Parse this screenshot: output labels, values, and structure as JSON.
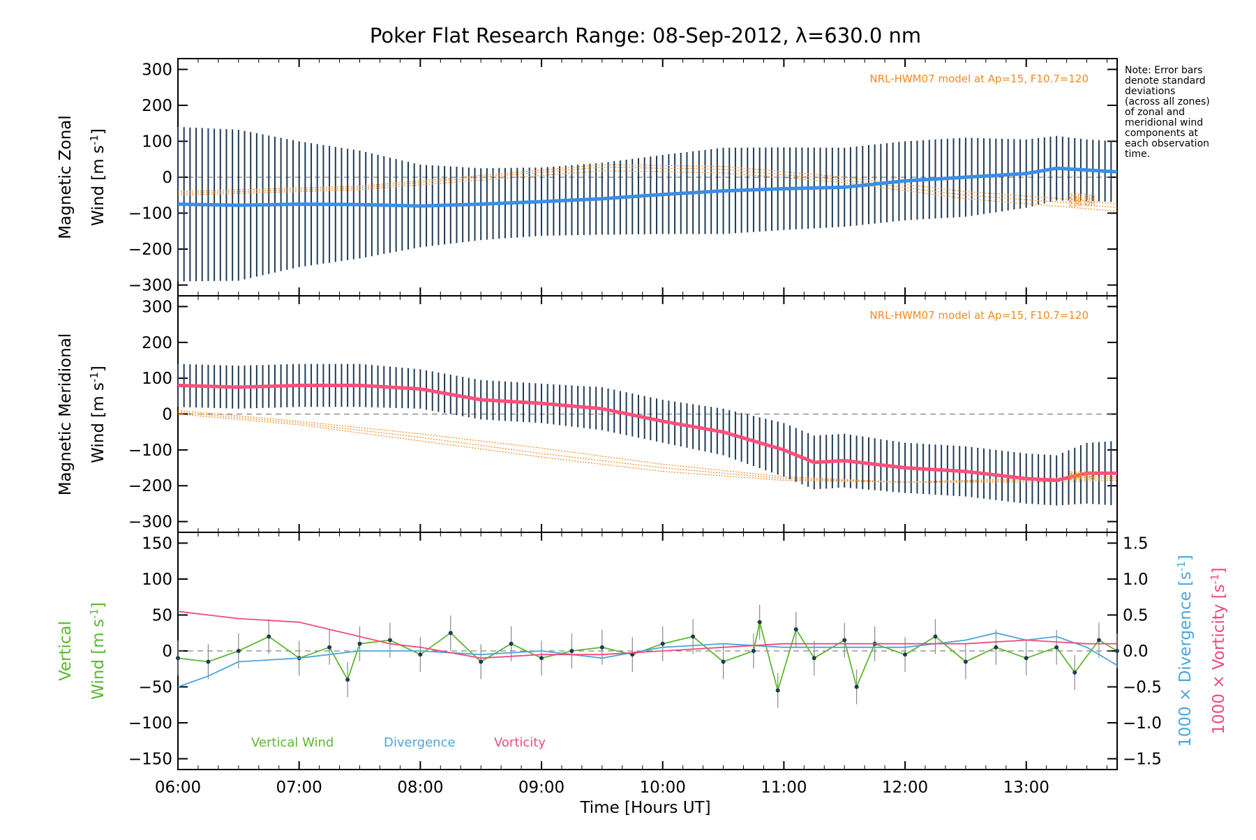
{
  "chart_data": [
    {
      "type": "line",
      "title": "Poker Flat Research Range: 08-Sep-2012, λ=630.0 nm",
      "ylabel_line1": "Magnetic Zonal",
      "ylabel_line2": "Wind [m s",
      "ylabel_sup": "-1",
      "ylabel_close": "]",
      "ylim": [
        -330,
        330
      ],
      "yticks": [
        "300",
        "200",
        "100",
        "0",
        "−100",
        "−200",
        "−300"
      ],
      "ytick_values": [
        300,
        200,
        100,
        0,
        -100,
        -200,
        -300
      ],
      "model_note": "NRL-HWM07 model at Ap=15, F10.7=120",
      "model_altitudes": [
        "260 km",
        "240 km",
        "220 km"
      ],
      "side_note": [
        "Note: Error bars",
        "denote standard",
        "deviations",
        "(across all zones)",
        "of zonal and",
        "meridional wind",
        "components at",
        "each observation",
        "time."
      ],
      "mean_series": {
        "name": "Zonal wind",
        "color": "#3a8ee6",
        "x_hours": [
          6.0,
          6.5,
          7.0,
          7.5,
          8.0,
          8.5,
          9.0,
          9.5,
          10.0,
          10.5,
          11.0,
          11.5,
          12.0,
          12.5,
          13.0,
          13.25,
          13.5,
          13.75
        ],
        "y": [
          -75,
          -78,
          -75,
          -76,
          -80,
          -75,
          -68,
          -60,
          -48,
          -38,
          -32,
          -28,
          -10,
          0,
          10,
          25,
          20,
          15
        ]
      },
      "errbar_halfwidth": [
        215,
        210,
        175,
        150,
        115,
        100,
        95,
        100,
        110,
        120,
        115,
        110,
        110,
        110,
        95,
        90,
        85,
        85
      ],
      "model_curves": [
        {
          "label": "260 km",
          "x_hours": [
            6.0,
            7.5,
            8.5,
            9.5,
            10.5,
            11.5,
            12.5,
            13.3,
            13.75
          ],
          "y": [
            -40,
            -25,
            5,
            35,
            30,
            0,
            -40,
            -60,
            -75
          ]
        },
        {
          "label": "240 km",
          "x_hours": [
            6.0,
            7.5,
            8.5,
            9.5,
            10.5,
            11.5,
            12.5,
            13.3,
            13.75
          ],
          "y": [
            -45,
            -30,
            0,
            28,
            22,
            -8,
            -50,
            -70,
            -85
          ]
        },
        {
          "label": "220 km",
          "x_hours": [
            6.0,
            7.5,
            8.5,
            9.5,
            10.5,
            11.5,
            12.5,
            13.3,
            13.75
          ],
          "y": [
            -50,
            -35,
            -8,
            18,
            12,
            -15,
            -60,
            -82,
            -95
          ]
        }
      ]
    },
    {
      "type": "line",
      "ylabel_line1": "Magnetic Meridional",
      "ylabel_line2": "Wind [m s",
      "ylabel_sup": "-1",
      "ylabel_close": "]",
      "ylim": [
        -330,
        330
      ],
      "yticks": [
        "300",
        "200",
        "100",
        "0",
        "−100",
        "−200",
        "−300"
      ],
      "ytick_values": [
        300,
        200,
        100,
        0,
        -100,
        -200,
        -300
      ],
      "model_note": "NRL-HWM07 model at Ap=15, F10.7=120",
      "model_altitudes": [
        "260 km",
        "240 km",
        "220 km"
      ],
      "mean_series": {
        "name": "Meridional wind",
        "color": "#ff4f7b",
        "x_hours": [
          6.0,
          6.5,
          7.0,
          7.5,
          8.0,
          8.5,
          9.0,
          9.5,
          10.0,
          10.5,
          11.0,
          11.25,
          11.5,
          12.0,
          12.5,
          13.0,
          13.25,
          13.5,
          13.75
        ],
        "y": [
          80,
          75,
          80,
          80,
          70,
          40,
          30,
          15,
          -20,
          -50,
          -100,
          -135,
          -130,
          -150,
          -160,
          -180,
          -185,
          -165,
          -165
        ]
      },
      "errbar_halfwidth": [
        60,
        60,
        60,
        60,
        55,
        55,
        55,
        60,
        60,
        65,
        75,
        75,
        75,
        70,
        70,
        70,
        70,
        85,
        90
      ],
      "model_curves": [
        {
          "label": "260 km",
          "x_hours": [
            6.0,
            7.0,
            8.0,
            9.0,
            10.0,
            11.0,
            12.0,
            13.0,
            13.75
          ],
          "y": [
            10,
            -20,
            -55,
            -95,
            -140,
            -175,
            -190,
            -190,
            -185
          ]
        },
        {
          "label": "240 km",
          "x_hours": [
            6.0,
            7.0,
            8.0,
            9.0,
            10.0,
            11.0,
            12.0,
            13.0,
            13.75
          ],
          "y": [
            5,
            -25,
            -65,
            -110,
            -150,
            -180,
            -190,
            -185,
            -180
          ]
        },
        {
          "label": "220 km",
          "x_hours": [
            6.0,
            7.0,
            8.0,
            9.0,
            10.0,
            11.0,
            12.0,
            13.0,
            13.75
          ],
          "y": [
            0,
            -30,
            -75,
            -120,
            -160,
            -185,
            -190,
            -180,
            -175
          ]
        }
      ]
    },
    {
      "type": "line",
      "ylabel_left_line1": "Vertical",
      "ylabel_left_line2": "Wind [m s",
      "ylabel_sup": "-1",
      "ylabel_close": "]",
      "ylabel_right1": "1000 × Divergence [s",
      "ylabel_right2": "1000 × Vorticity [s",
      "ylim": [
        -165,
        165
      ],
      "yticks": [
        "150",
        "100",
        "50",
        "0",
        "−50",
        "−100",
        "−150"
      ],
      "ytick_values": [
        150,
        100,
        50,
        0,
        -50,
        -100,
        -150
      ],
      "y2lim": [
        -1.65,
        1.65
      ],
      "y2ticks": [
        "1.5",
        "1.0",
        "0.5",
        "0.0",
        "−0.5",
        "−1.0",
        "−1.5"
      ],
      "y2tick_values": [
        1.5,
        1.0,
        0.5,
        0.0,
        -0.5,
        -1.0,
        -1.5
      ],
      "legend": [
        "Vertical Wind",
        "Divergence",
        "Vorticity"
      ],
      "series": [
        {
          "name": "Vertical Wind",
          "color": "#5cb82e",
          "x_hours": [
            6.0,
            6.25,
            6.5,
            6.75,
            7.0,
            7.25,
            7.4,
            7.5,
            7.75,
            8.0,
            8.25,
            8.5,
            8.75,
            9.0,
            9.25,
            9.5,
            9.75,
            10.0,
            10.25,
            10.5,
            10.75,
            10.8,
            10.95,
            11.1,
            11.25,
            11.5,
            11.6,
            11.75,
            12.0,
            12.25,
            12.5,
            12.75,
            13.0,
            13.25,
            13.4,
            13.6,
            13.75
          ],
          "y": [
            -10,
            -15,
            0,
            20,
            -10,
            5,
            -40,
            10,
            15,
            -5,
            25,
            -15,
            10,
            -10,
            0,
            5,
            -5,
            10,
            20,
            -15,
            0,
            40,
            -55,
            30,
            -10,
            15,
            -50,
            10,
            -5,
            20,
            -15,
            5,
            -10,
            5,
            -30,
            15,
            0
          ]
        },
        {
          "name": "Divergence",
          "color": "#4aa6de",
          "axis": "right",
          "x_hours": [
            6.0,
            6.25,
            6.5,
            7.0,
            7.5,
            8.0,
            8.5,
            9.0,
            9.5,
            10.0,
            10.5,
            11.0,
            11.5,
            12.0,
            12.5,
            12.75,
            13.0,
            13.25,
            13.5,
            13.75
          ],
          "y": [
            -0.5,
            -0.35,
            -0.15,
            -0.1,
            0.0,
            0.0,
            -0.05,
            0.0,
            -0.1,
            0.05,
            0.1,
            0.05,
            0.05,
            0.05,
            0.15,
            0.25,
            0.15,
            0.2,
            0.05,
            -0.2
          ]
        },
        {
          "name": "Vorticity",
          "color": "#f24a7a",
          "axis": "right",
          "x_hours": [
            6.0,
            6.25,
            6.5,
            7.0,
            7.25,
            7.5,
            7.75,
            8.0,
            8.5,
            9.0,
            9.5,
            10.0,
            10.5,
            11.0,
            11.5,
            12.0,
            12.5,
            13.0,
            13.5,
            13.75
          ],
          "y": [
            0.55,
            0.5,
            0.45,
            0.4,
            0.3,
            0.2,
            0.1,
            0.05,
            -0.1,
            -0.05,
            -0.05,
            0.0,
            0.05,
            0.1,
            0.1,
            0.1,
            0.1,
            0.15,
            0.1,
            0.1
          ]
        }
      ]
    }
  ],
  "x_axis": {
    "xlabel": "Time [Hours UT]",
    "xlim": [
      6.0,
      13.75
    ],
    "xticks": [
      "06:00",
      "07:00",
      "08:00",
      "09:00",
      "10:00",
      "11:00",
      "12:00",
      "13:00"
    ],
    "xtick_values": [
      6,
      7,
      8,
      9,
      10,
      11,
      12,
      13
    ]
  },
  "colors": {
    "errbar": "#1f3a55",
    "zero_line": "#666666",
    "model": "#f08a24",
    "vertical": "#5cb82e",
    "divergence": "#4aa6de",
    "vorticity": "#f24a7a"
  }
}
